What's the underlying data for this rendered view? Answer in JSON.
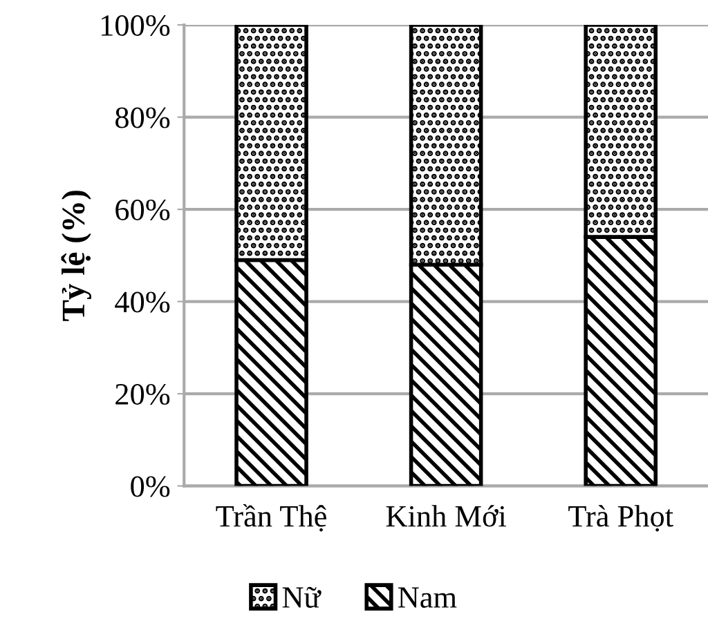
{
  "chart_data": {
    "type": "bar",
    "stacked": true,
    "ylabel": "Tỷ lệ (%)",
    "categories": [
      "Trần Thệ",
      "Kinh Mới",
      "Trà Phọt"
    ],
    "series": [
      {
        "name": "Nam",
        "color": "#000000",
        "values": [
          49,
          48,
          54
        ]
      },
      {
        "name": "Nữ",
        "color": "#000000",
        "values": [
          51,
          52,
          46
        ]
      }
    ],
    "ylim": [
      0,
      100
    ],
    "yticks": [
      {
        "value": 0,
        "label": "0%"
      },
      {
        "value": 20,
        "label": "20%"
      },
      {
        "value": 40,
        "label": "40%"
      },
      {
        "value": 60,
        "label": "60%"
      },
      {
        "value": 80,
        "label": "80%"
      },
      {
        "value": 100,
        "label": "100%"
      }
    ],
    "grid": "y",
    "legend": "bottom"
  }
}
